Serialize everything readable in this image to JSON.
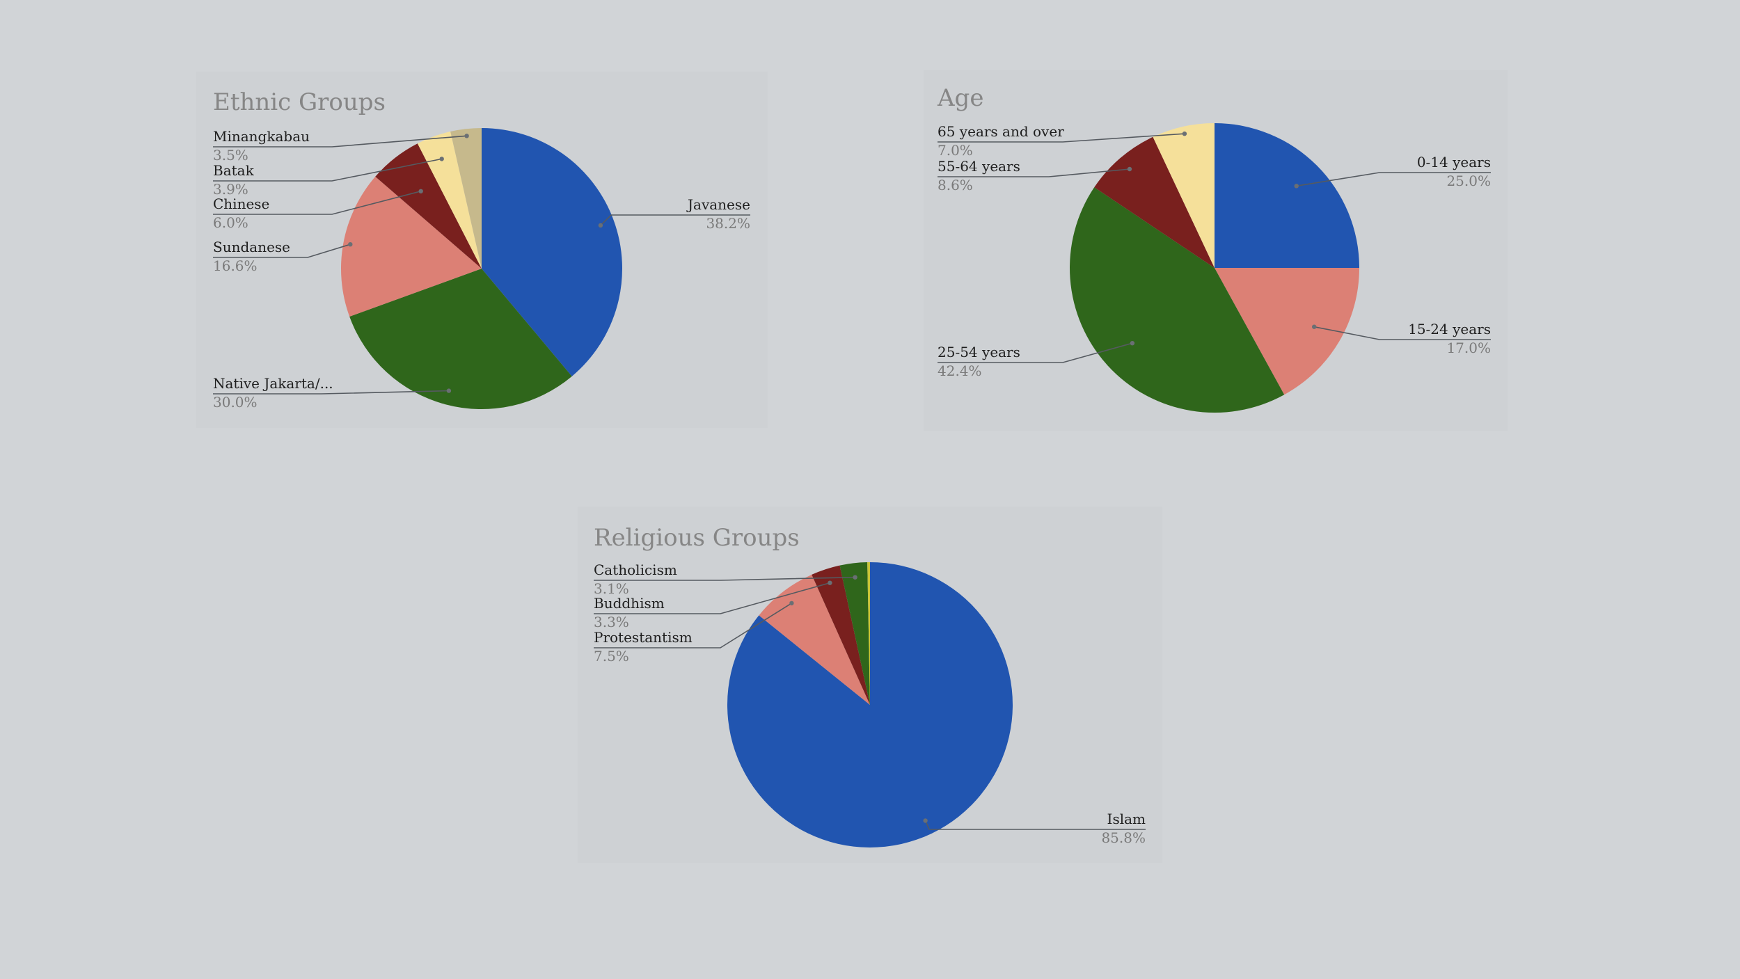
{
  "colors": {
    "background": "#d1d4d7",
    "panel": "#ced1d4",
    "blue": "#2155b0",
    "green": "#2f661b",
    "salmon": "#dc8075",
    "maroon": "#79201e",
    "yellow": "#f5e09a",
    "tan": "#c6b98c",
    "olive_yellow": "#c8c43a"
  },
  "chart_data": [
    {
      "type": "pie",
      "title": "Ethnic Groups",
      "slices": [
        {
          "label": "Javanese",
          "pct_label": "38.2%",
          "value": 38.2,
          "color": "#2155b0"
        },
        {
          "label": "Native Jakarta/...",
          "pct_label": "30.0%",
          "value": 30.0,
          "color": "#2f661b"
        },
        {
          "label": "Sundanese",
          "pct_label": "16.6%",
          "value": 16.6,
          "color": "#dc8075"
        },
        {
          "label": "Chinese",
          "pct_label": "6.0%",
          "value": 6.0,
          "color": "#79201e"
        },
        {
          "label": "Batak",
          "pct_label": "3.9%",
          "value": 3.9,
          "color": "#f5e09a"
        },
        {
          "label": "Minangkabau",
          "pct_label": "3.5%",
          "value": 3.5,
          "color": "#c6b98c"
        }
      ],
      "legend": "none"
    },
    {
      "type": "pie",
      "title": "Age",
      "slices": [
        {
          "label": "0-14 years",
          "pct_label": "25.0%",
          "value": 25.0,
          "color": "#2155b0"
        },
        {
          "label": "15-24 years",
          "pct_label": "17.0%",
          "value": 17.0,
          "color": "#dc8075"
        },
        {
          "label": "25-54 years",
          "pct_label": "42.4%",
          "value": 42.4,
          "color": "#2f661b"
        },
        {
          "label": "55-64 years",
          "pct_label": "8.6%",
          "value": 8.6,
          "color": "#79201e"
        },
        {
          "label": "65 years and over",
          "pct_label": "7.0%",
          "value": 7.0,
          "color": "#f5e09a"
        }
      ],
      "legend": "none"
    },
    {
      "type": "pie",
      "title": "Religious Groups",
      "slices": [
        {
          "label": "Islam",
          "pct_label": "85.8%",
          "value": 85.8,
          "color": "#2155b0"
        },
        {
          "label": "Protestantism",
          "pct_label": "7.5%",
          "value": 7.5,
          "color": "#dc8075"
        },
        {
          "label": "Buddhism",
          "pct_label": "3.3%",
          "value": 3.3,
          "color": "#79201e"
        },
        {
          "label": "Catholicism",
          "pct_label": "3.1%",
          "value": 3.1,
          "color": "#2f661b"
        },
        {
          "label": "",
          "pct_label": "",
          "value": 0.3,
          "color": "#c8c43a"
        }
      ],
      "legend": "none"
    }
  ]
}
